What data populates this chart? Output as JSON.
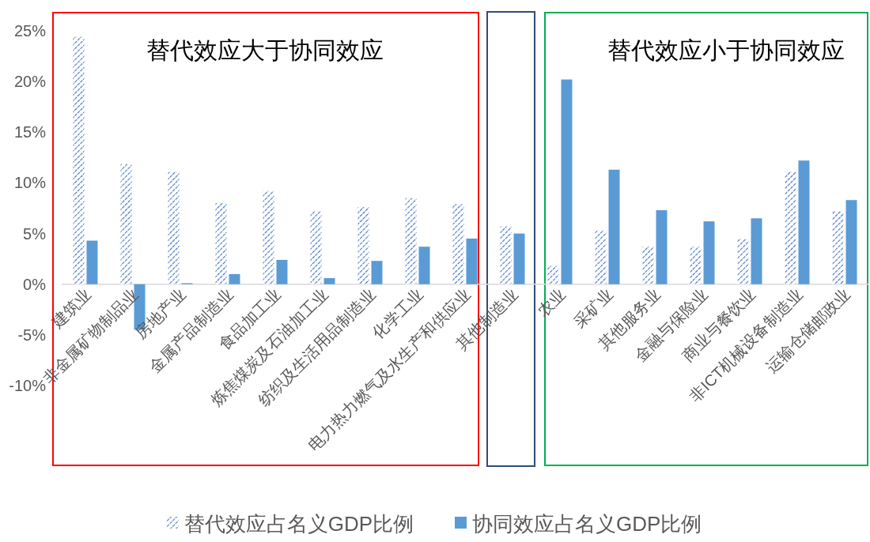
{
  "chart_data": {
    "type": "bar",
    "categories": [
      "建筑业",
      "非金属矿物制品业",
      "房地产业",
      "金属产品制造业",
      "食品加工业",
      "炼焦煤炭及石油加工业",
      "纺织及生活用品制造业",
      "化学工业",
      "电力热力燃气及水生产和供应业",
      "其他制造业",
      "农业",
      "采矿业",
      "其他服务业",
      "金融与保险业",
      "商业与餐饮业",
      "非ICT机械设备制造业",
      "运输仓储邮政业"
    ],
    "series": [
      {
        "name": "替代效应占名义GDP比例",
        "color": "#4472c4",
        "values": [
          24.4,
          11.9,
          11.1,
          8.0,
          9.2,
          7.2,
          7.6,
          8.5,
          7.9,
          5.7,
          1.8,
          5.3,
          3.7,
          3.7,
          4.5,
          11.1,
          7.2
        ]
      },
      {
        "name": "协同效应占名义GDP比例",
        "color": "#5b9bd5",
        "values": [
          4.3,
          -4.5,
          0.1,
          1.0,
          2.4,
          0.6,
          2.3,
          3.7,
          4.5,
          5.0,
          20.2,
          11.3,
          7.3,
          6.2,
          6.5,
          12.2,
          8.3
        ]
      }
    ],
    "ylim": [
      -10,
      25
    ],
    "yticks": [
      {
        "value": -10,
        "label": "-10%"
      },
      {
        "value": -5,
        "label": "-5%"
      },
      {
        "value": 0,
        "label": "0%"
      },
      {
        "value": 5,
        "label": "5%"
      },
      {
        "value": 10,
        "label": "10%"
      },
      {
        "value": 15,
        "label": "15%"
      },
      {
        "value": 20,
        "label": "20%"
      },
      {
        "value": 25,
        "label": "25%"
      }
    ],
    "annotations": [
      "替代效应大于协同效应",
      "替代效应小于协同效应"
    ],
    "legend": "bottom"
  }
}
